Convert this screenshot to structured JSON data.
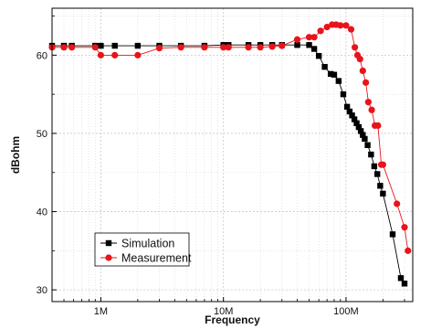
{
  "chart_data": {
    "type": "line",
    "xscale": "log",
    "xlim": [
      400000,
      350000000
    ],
    "ylim": [
      28.5,
      66
    ],
    "xlabel": "Frequency",
    "ylabel": "dBohm",
    "grid": true,
    "legend_position": "bottom-left",
    "x_ticks": [
      {
        "value": 1000000,
        "label": "1M"
      },
      {
        "value": 10000000,
        "label": "10M"
      },
      {
        "value": 100000000,
        "label": "100M"
      }
    ],
    "y_ticks": [
      {
        "value": 30,
        "label": "30"
      },
      {
        "value": 40,
        "label": "40"
      },
      {
        "value": 50,
        "label": "50"
      },
      {
        "value": 60,
        "label": "60"
      }
    ],
    "series": [
      {
        "name": "Simulation",
        "color": "#000000",
        "marker": "square",
        "x": [
          400000,
          500000,
          580000,
          900000,
          1000000,
          1300000,
          2000000,
          3000000,
          4500000,
          7000000,
          10000000,
          11000000,
          16000000,
          20000000,
          25000000,
          30000000,
          40000000,
          50000000,
          55000000,
          60000000,
          67000000,
          75000000,
          80000000,
          87000000,
          95000000,
          102000000,
          107000000,
          112000000,
          117000000,
          122000000,
          127000000,
          132000000,
          137000000,
          142000000,
          150000000,
          160000000,
          170000000,
          180000000,
          190000000,
          200000000,
          240000000,
          280000000,
          300000000
        ],
        "y": [
          61.2,
          61.2,
          61.2,
          61.2,
          61.2,
          61.2,
          61.2,
          61.2,
          61.2,
          61.2,
          61.3,
          61.3,
          61.3,
          61.3,
          61.3,
          61.3,
          61.3,
          61.3,
          60.8,
          59.9,
          58.5,
          57.6,
          57.5,
          56.7,
          55.0,
          53.4,
          52.8,
          52.3,
          51.8,
          51.3,
          50.8,
          50.3,
          49.8,
          49.3,
          48.5,
          47.3,
          45.8,
          44.8,
          43.3,
          42.3,
          37.1,
          31.5,
          30.8
        ]
      },
      {
        "name": "Measurement",
        "color": "#e8141a",
        "marker": "circle",
        "x": [
          400000,
          500000,
          580000,
          900000,
          1000000,
          1300000,
          2000000,
          3000000,
          4500000,
          7000000,
          10000000,
          11000000,
          16000000,
          20000000,
          25000000,
          30000000,
          40000000,
          50000000,
          55000000,
          62000000,
          70000000,
          77000000,
          83000000,
          90000000,
          100000000,
          110000000,
          118000000,
          124000000,
          130000000,
          137000000,
          145000000,
          152000000,
          162000000,
          172000000,
          182000000,
          194000000,
          200000000,
          260000000,
          300000000,
          320000000
        ],
        "y": [
          61.0,
          61.0,
          61.0,
          61.0,
          60.0,
          60.0,
          60.0,
          60.9,
          61.0,
          61.0,
          61.0,
          61.0,
          61.0,
          61.0,
          61.1,
          61.2,
          62.0,
          62.3,
          62.3,
          63.1,
          63.6,
          63.9,
          63.9,
          63.8,
          63.8,
          63.3,
          61.0,
          60.0,
          59.5,
          58.0,
          56.5,
          54.0,
          53.0,
          51.0,
          51.0,
          46.0,
          46.0,
          41.0,
          38.0,
          35.0
        ]
      }
    ]
  }
}
